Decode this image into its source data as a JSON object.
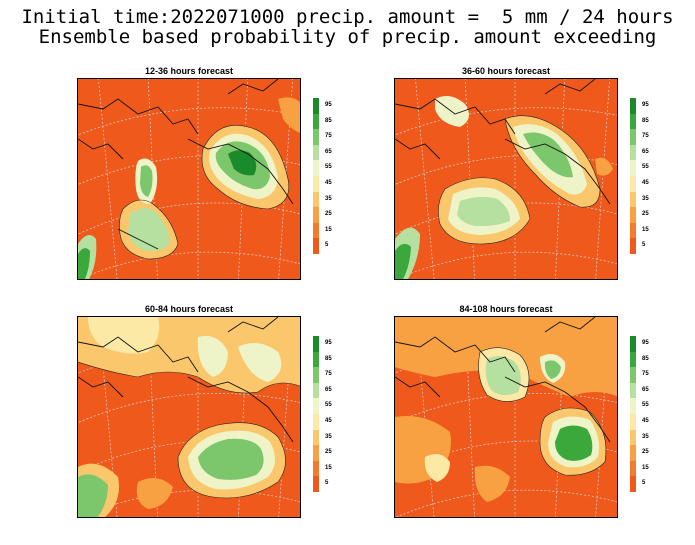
{
  "title_line1": "Initial time:2022071000 precip. amount =  5 mm / 24 hours",
  "title_line2": "Ensemble based probability of precip. amount exceeding",
  "legend": {
    "labels": [
      "95",
      "85",
      "75",
      "65",
      "55",
      "45",
      "35",
      "25",
      "15",
      "5"
    ],
    "colors": [
      "#1a8a2a",
      "#3aa83a",
      "#7cc66c",
      "#b5e0a0",
      "#eef4c8",
      "#fde9a6",
      "#fbc76c",
      "#f7a142",
      "#f27b2c",
      "#ef5a1c"
    ]
  },
  "panels": [
    {
      "title": "12-36 hours forecast"
    },
    {
      "title": "36-60 hours forecast"
    },
    {
      "title": "60-84 hours forecast"
    },
    {
      "title": "84-108 hours forecast"
    }
  ],
  "colors": {
    "background_prob": "#ef5a1c",
    "coast": "#111111",
    "grid": "#cfcfcf"
  }
}
